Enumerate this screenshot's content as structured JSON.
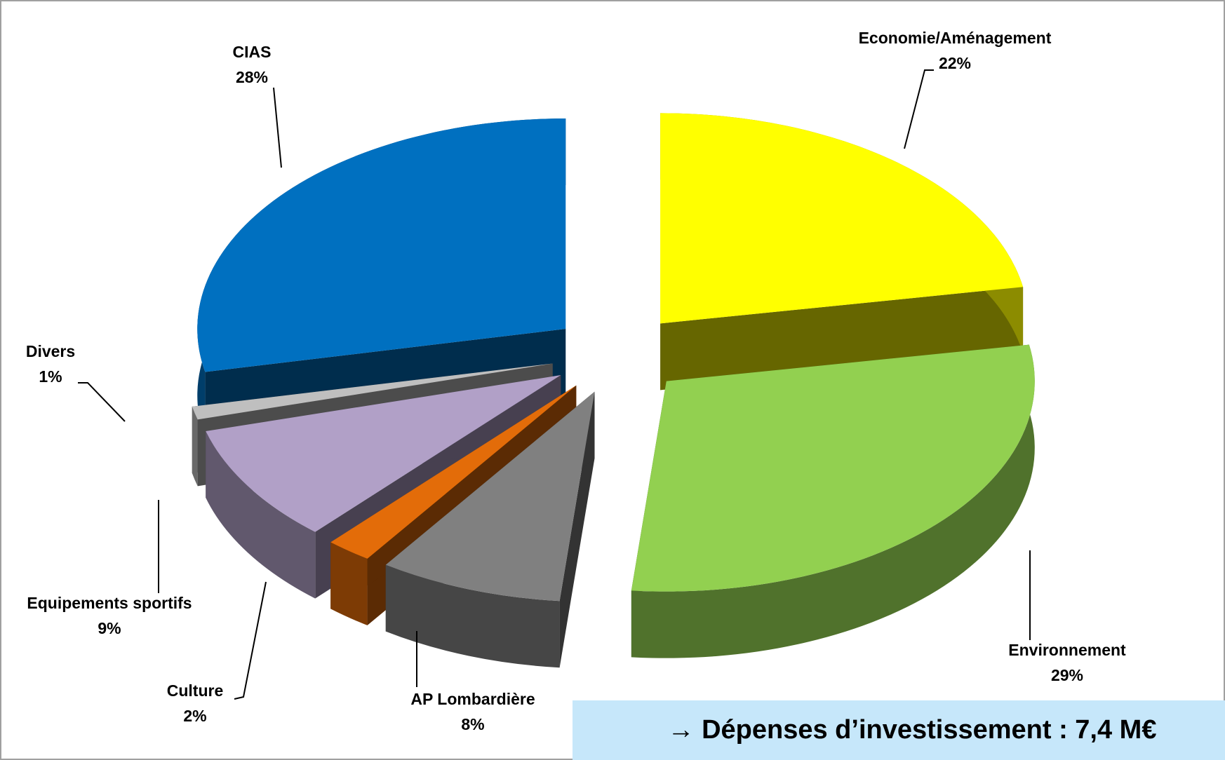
{
  "chart_data": {
    "type": "pie3d",
    "categories": [
      "Economie/Aménagement",
      "Environnement",
      "AP Lombardière",
      "Culture",
      "Equipements sportifs",
      "Divers",
      "CIAS"
    ],
    "values": [
      22,
      29,
      8,
      2,
      9,
      1,
      28
    ],
    "value_labels": [
      "22%",
      "29%",
      "8%",
      "2%",
      "9%",
      "1%",
      "28%"
    ],
    "colors": [
      "#ffff00",
      "#92d050",
      "#808080",
      "#e36c09",
      "#b1a0c7",
      "#bfbfbf",
      "#0070c0"
    ],
    "annotation": "→ Dépenses d’investissement : 7,4 M€"
  }
}
